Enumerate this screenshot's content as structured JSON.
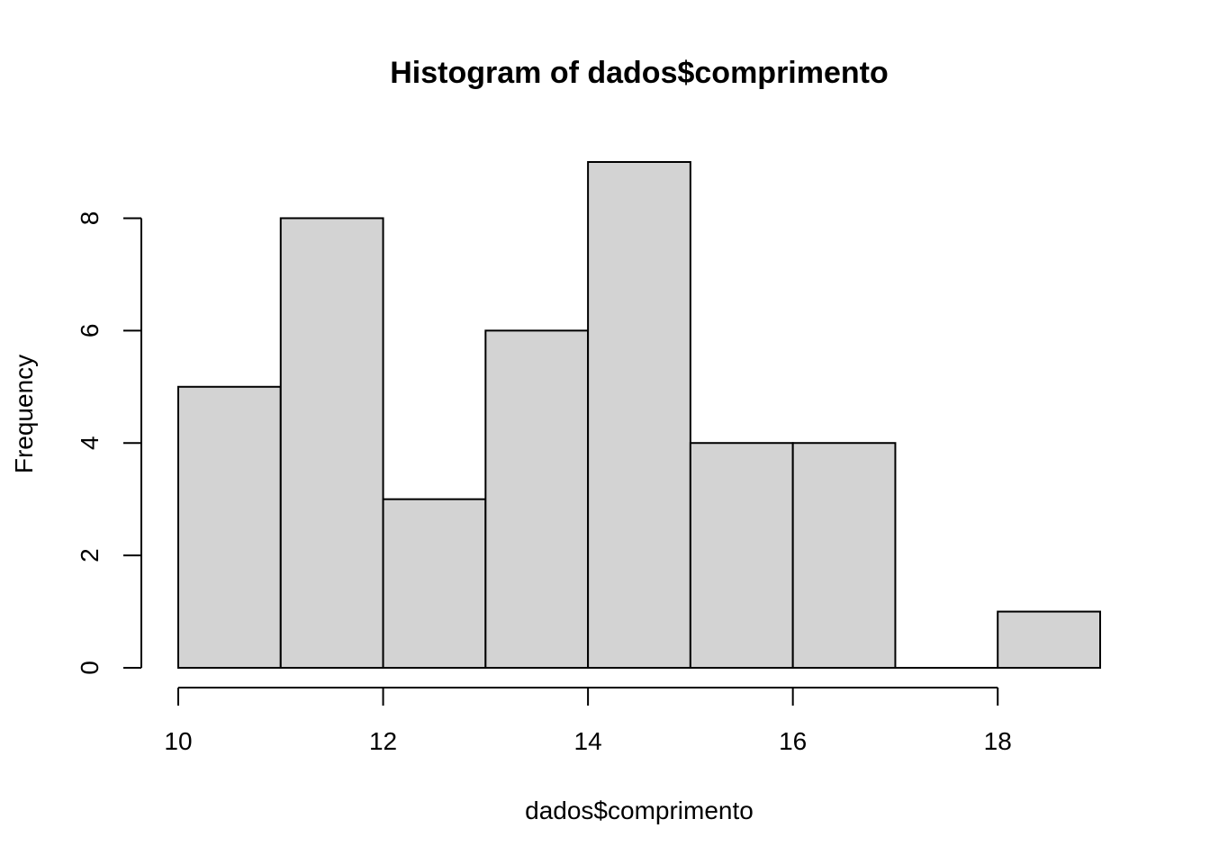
{
  "chart_data": {
    "type": "bar",
    "title": "Histogram of dados$comprimento",
    "xlabel": "dados$comprimento",
    "ylabel": "Frequency",
    "bins": [
      {
        "start": 10,
        "end": 11,
        "count": 5
      },
      {
        "start": 11,
        "end": 12,
        "count": 8
      },
      {
        "start": 12,
        "end": 13,
        "count": 3
      },
      {
        "start": 13,
        "end": 14,
        "count": 6
      },
      {
        "start": 14,
        "end": 15,
        "count": 9
      },
      {
        "start": 15,
        "end": 16,
        "count": 4
      },
      {
        "start": 16,
        "end": 17,
        "count": 4
      },
      {
        "start": 17,
        "end": 18,
        "count": 0
      },
      {
        "start": 18,
        "end": 19,
        "count": 1
      }
    ],
    "xticks": [
      10,
      12,
      14,
      16,
      18
    ],
    "yticks": [
      0,
      2,
      4,
      6,
      8
    ],
    "xtick_labels": [
      "10",
      "12",
      "14",
      "16",
      "18"
    ],
    "ytick_labels": [
      "0",
      "2",
      "4",
      "6",
      "8"
    ],
    "xlim": [
      10,
      19
    ],
    "ylim": [
      0,
      9
    ],
    "grid": false,
    "bar_color": "#d3d3d3",
    "edge_color": "#000000"
  }
}
